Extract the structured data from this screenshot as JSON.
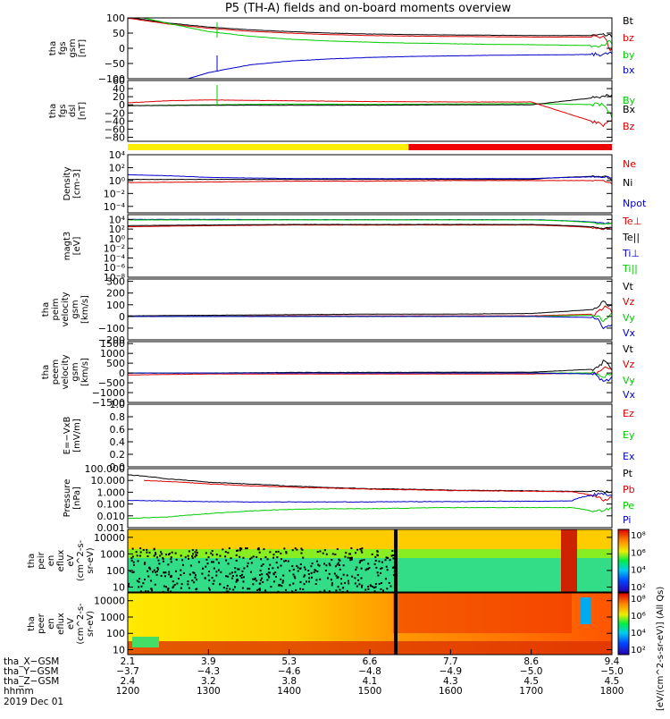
{
  "title": "P5 (TH-A) fields and on-board moments overview",
  "chart_data": [
    {
      "type": "line",
      "panel": "fgs-gsm",
      "ylabel": [
        "tha",
        "fgs",
        "gsm",
        "[nT]"
      ],
      "ylim": [
        -100,
        100
      ],
      "yticks": [
        "100",
        "50",
        "0",
        "−50",
        "−100"
      ],
      "legend": [
        "Bt",
        "bz",
        "by",
        "bx"
      ],
      "series": [
        {
          "name": "Bt",
          "color": "#000000",
          "x": [
            12.05,
            12.5,
            13.0,
            13.5,
            14.0,
            14.5,
            15.0,
            15.5,
            16.0,
            16.5,
            17.0,
            17.5,
            17.92,
            17.97,
            18.0
          ],
          "values": [
            100,
            83,
            70,
            61,
            55,
            50,
            47,
            45,
            44,
            43,
            42,
            42,
            42,
            40,
            38
          ]
        },
        {
          "name": "bz",
          "color": "#dd0000",
          "x": [
            12.0,
            12.5,
            13.0,
            13.5,
            14.0,
            14.5,
            15.0,
            15.5,
            16.0,
            16.5,
            17.0,
            17.5,
            17.92,
            17.97,
            18.0
          ],
          "values": [
            99,
            80,
            66,
            56,
            50,
            45,
            42,
            40,
            39,
            38,
            37,
            37,
            37,
            -10,
            -5
          ]
        },
        {
          "name": "by",
          "color": "#00cc00",
          "x": [
            12.2,
            12.5,
            13.0,
            13.5,
            14.0,
            14.5,
            15.0,
            15.5,
            16.0,
            16.5,
            17.0,
            17.5,
            17.92,
            17.97,
            18.0
          ],
          "values": [
            100,
            82,
            55,
            40,
            30,
            24,
            20,
            17,
            15,
            13,
            12,
            10,
            8,
            25,
            20
          ]
        },
        {
          "name": "bx",
          "color": "#0000cc",
          "x": [
            12.75,
            13.0,
            13.5,
            14.0,
            14.5,
            15.0,
            15.5,
            16.0,
            16.5,
            17.0,
            17.5,
            17.92,
            17.97,
            18.0
          ],
          "values": [
            -100,
            -80,
            -55,
            -42,
            -35,
            -30,
            -27,
            -25,
            -23,
            -22,
            -21,
            -20,
            -15,
            -18
          ]
        }
      ]
    },
    {
      "type": "line",
      "panel": "fgs-dsl",
      "ylabel": [
        "tha",
        "fgs",
        "dsl",
        "[nT]"
      ],
      "ylim": [
        -90,
        60
      ],
      "yticks": [
        "60",
        "40",
        "20",
        "0",
        "−20",
        "−40",
        "−60",
        "−80"
      ],
      "legend": [
        "By",
        "Bx",
        "Bz"
      ],
      "series": [
        {
          "name": "By",
          "color": "#00cc00",
          "x": [
            12.0,
            13.0,
            14.0,
            15.0,
            16.0,
            17.0,
            17.9,
            18.0
          ],
          "values": [
            -2,
            0,
            2,
            1,
            2,
            3,
            0,
            -30
          ]
        },
        {
          "name": "Bx",
          "color": "#000000",
          "x": [
            12.0,
            13.0,
            14.0,
            15.0,
            16.0,
            17.0,
            17.9,
            18.0
          ],
          "values": [
            -2,
            -1,
            -1,
            -1,
            0,
            0,
            20,
            25
          ]
        },
        {
          "name": "Bz",
          "color": "#dd0000",
          "x": [
            12.0,
            12.5,
            13.0,
            14.0,
            15.0,
            16.0,
            17.0,
            17.9,
            18.0
          ],
          "values": [
            5,
            10,
            12,
            10,
            8,
            7,
            7,
            -50,
            -40
          ]
        }
      ]
    },
    {
      "type": "line",
      "panel": "density",
      "ylabel": [
        "Density",
        "[cm-3]"
      ],
      "scale": "log",
      "ylim": [
        1e-05,
        10000
      ],
      "yticks": [
        "10⁴",
        "10²",
        "10⁰",
        "10⁻²",
        "10⁻⁴"
      ],
      "legend": [
        "Ne",
        "Ni",
        "Npot"
      ],
      "series": [
        {
          "name": "Ne",
          "color": "#dd0000",
          "x": [
            12.0,
            13.0,
            14.0,
            15.0,
            16.0,
            17.0,
            17.9,
            18.0
          ],
          "values": [
            0.5,
            0.6,
            0.8,
            0.8,
            1,
            1,
            1,
            0.3
          ]
        },
        {
          "name": "Ni",
          "color": "#000000",
          "x": [
            12.0,
            13.0,
            14.0,
            15.0,
            16.0,
            17.0,
            17.9,
            18.0
          ],
          "values": [
            1.5,
            1.5,
            1.5,
            1.5,
            1.5,
            1.5,
            5,
            1
          ]
        },
        {
          "name": "Npot",
          "color": "#0000cc",
          "x": [
            12.0,
            13.0,
            14.0,
            15.0,
            16.0,
            17.0,
            17.9,
            18.0
          ],
          "values": [
            8,
            3,
            2,
            2,
            2,
            2,
            4,
            3
          ]
        }
      ]
    },
    {
      "type": "line",
      "panel": "temperature",
      "ylabel": [
        "magt3",
        "[eV]"
      ],
      "scale": "log",
      "ylim": [
        1e-08,
        100000
      ],
      "yticks": [
        "10⁴",
        "10²",
        "10⁰",
        "10⁻²",
        "10⁻⁴",
        "10⁻⁶",
        "10⁻⁸"
      ],
      "legend": [
        "Te⊥",
        "Te||",
        "Ti⊥",
        "Ti||"
      ],
      "series": [
        {
          "name": "Te⊥",
          "color": "#dd0000",
          "x": [
            12.0,
            13.0,
            14.0,
            15.0,
            16.0,
            17.0,
            17.9,
            18.0
          ],
          "values": [
            300,
            500,
            700,
            700,
            700,
            700,
            100,
            150
          ]
        },
        {
          "name": "Te||",
          "color": "#000000",
          "x": [
            12.0,
            13.0,
            14.0,
            15.0,
            16.0,
            17.0,
            17.9,
            18.0
          ],
          "values": [
            500,
            700,
            900,
            900,
            900,
            900,
            150,
            200
          ]
        },
        {
          "name": "Ti⊥",
          "color": "#0000cc",
          "x": [
            12.0,
            13.0,
            14.0,
            15.0,
            16.0,
            17.0,
            17.9,
            18.0
          ],
          "values": [
            10000,
            10000,
            9000,
            9000,
            9000,
            9000,
            1500,
            2000
          ]
        },
        {
          "name": "Ti||",
          "color": "#00cc00",
          "x": [
            12.0,
            13.0,
            14.0,
            15.0,
            16.0,
            17.0,
            17.9,
            18.0
          ],
          "values": [
            8000,
            8000,
            8000,
            8000,
            8000,
            8000,
            1000,
            1500
          ]
        }
      ]
    },
    {
      "type": "line",
      "panel": "peim-velocity",
      "ylabel": [
        "tha",
        "peim",
        "velocity",
        "gsm",
        "[km/s]"
      ],
      "ylim": [
        -200,
        320
      ],
      "yticks": [
        "300",
        "200",
        "100",
        "0",
        "−100",
        "−200"
      ],
      "legend": [
        "Vt",
        "Vz",
        "Vy",
        "Vx"
      ],
      "series": [
        {
          "name": "Vt",
          "color": "#000000",
          "x": [
            12.0,
            13.0,
            14.0,
            15.0,
            16.0,
            17.0,
            17.8,
            17.9,
            18.0
          ],
          "values": [
            5,
            10,
            15,
            20,
            20,
            25,
            60,
            130,
            80
          ]
        },
        {
          "name": "Vz",
          "color": "#dd0000",
          "x": [
            12.0,
            13.0,
            14.0,
            15.0,
            16.0,
            17.0,
            17.8,
            17.9,
            18.0
          ],
          "values": [
            0,
            0,
            5,
            5,
            5,
            5,
            20,
            80,
            40
          ]
        },
        {
          "name": "Vy",
          "color": "#00cc00",
          "x": [
            12.0,
            13.0,
            14.0,
            15.0,
            16.0,
            17.0,
            17.8,
            17.9,
            18.0
          ],
          "values": [
            0,
            0,
            0,
            0,
            0,
            0,
            10,
            -40,
            20
          ]
        },
        {
          "name": "Vx",
          "color": "#0000cc",
          "x": [
            12.0,
            13.0,
            14.0,
            15.0,
            16.0,
            17.0,
            17.8,
            17.9,
            18.0
          ],
          "values": [
            0,
            0,
            0,
            0,
            0,
            0,
            -10,
            -100,
            -60
          ]
        }
      ]
    },
    {
      "type": "line",
      "panel": "peem-velocity",
      "ylabel": [
        "tha",
        "peem",
        "velocity",
        "gsm",
        "[km/s]"
      ],
      "ylim": [
        -1500,
        1600
      ],
      "yticks": [
        "1500",
        "1000",
        "500",
        "0",
        "−500",
        "−1000",
        "−1500"
      ],
      "legend": [
        "Vt",
        "Vz",
        "Vy",
        "Vx"
      ],
      "series": [
        {
          "name": "Vt",
          "color": "#000000",
          "x": [
            12.0,
            13.0,
            14.0,
            15.0,
            16.0,
            17.0,
            17.8,
            17.9,
            18.0
          ],
          "values": [
            0,
            0,
            30,
            30,
            40,
            40,
            200,
            600,
            200
          ]
        },
        {
          "name": "Vz",
          "color": "#dd0000",
          "x": [
            12.0,
            13.0,
            14.0,
            15.0,
            16.0,
            17.0,
            17.8,
            17.9,
            18.0
          ],
          "values": [
            -100,
            -50,
            -50,
            -50,
            -50,
            -50,
            0,
            300,
            100
          ]
        },
        {
          "name": "Vy",
          "color": "#00cc00",
          "x": [
            12.0,
            13.0,
            14.0,
            15.0,
            16.0,
            17.0,
            17.8,
            17.9,
            18.0
          ],
          "values": [
            0,
            0,
            0,
            0,
            0,
            0,
            0,
            -200,
            0
          ]
        },
        {
          "name": "Vx",
          "color": "#0000cc",
          "x": [
            12.0,
            13.0,
            14.0,
            15.0,
            16.0,
            17.0,
            17.8,
            17.9,
            18.0
          ],
          "values": [
            0,
            0,
            0,
            0,
            0,
            0,
            -50,
            -500,
            -200
          ]
        }
      ]
    },
    {
      "type": "line",
      "panel": "e-field",
      "ylabel": [
        "E=−VxB",
        "[mV/m]"
      ],
      "ylim": [
        0,
        1
      ],
      "yticks": [
        "1.0",
        "0.8",
        "0.6",
        "0.4",
        "0.2",
        "0.0"
      ],
      "legend": [
        "Ez",
        "Ey",
        "Ex"
      ],
      "series": []
    },
    {
      "type": "line",
      "panel": "pressure",
      "ylabel": [
        "Pressure",
        "[nPa]"
      ],
      "scale": "log",
      "ylim": [
        0.001,
        100
      ],
      "yticks": [
        "100.000",
        "10.000",
        "1.000",
        "0.100",
        "0.010",
        "0.001"
      ],
      "legend": [
        "Pt",
        "Pb",
        "Pe",
        "Pi"
      ],
      "series": [
        {
          "name": "Pt",
          "color": "#000000",
          "x": [
            12.0,
            12.5,
            13.0,
            13.5,
            14.0,
            14.5,
            15.0,
            15.5,
            16.0,
            16.5,
            17.0,
            17.5,
            17.9,
            18.0
          ],
          "values": [
            30,
            13,
            7,
            5,
            3.3,
            2.5,
            2,
            1.8,
            1.5,
            1.4,
            1.3,
            1.2,
            1.1,
            0.9
          ]
        },
        {
          "name": "Pb",
          "color": "#dd0000",
          "x": [
            12.2,
            12.5,
            13.0,
            13.5,
            14.0,
            14.5,
            15.0,
            15.5,
            16.0,
            16.5,
            17.0,
            17.5,
            17.9,
            18.0
          ],
          "values": [
            10,
            8,
            5,
            3.5,
            2.7,
            2.2,
            1.8,
            1.6,
            1.4,
            1.3,
            1.2,
            1.1,
            0.2,
            0.4
          ]
        },
        {
          "name": "Pe",
          "color": "#00cc00",
          "x": [
            12.0,
            12.5,
            13.0,
            13.5,
            14.0,
            14.5,
            15.0,
            15.5,
            16.0,
            16.5,
            17.0,
            17.5,
            17.8,
            18.0
          ],
          "values": [
            0.006,
            0.008,
            0.015,
            0.025,
            0.035,
            0.04,
            0.04,
            0.045,
            0.05,
            0.05,
            0.05,
            0.05,
            0.02,
            0.05
          ]
        },
        {
          "name": "Pi",
          "color": "#0000cc",
          "x": [
            12.0,
            12.5,
            13.0,
            13.5,
            14.0,
            14.5,
            15.0,
            15.5,
            16.0,
            16.5,
            17.0,
            17.5,
            17.9,
            18.0
          ],
          "values": [
            0.2,
            0.18,
            0.16,
            0.15,
            0.15,
            0.15,
            0.15,
            0.16,
            0.16,
            0.17,
            0.17,
            0.18,
            0.8,
            0.6
          ]
        }
      ]
    },
    {
      "type": "heatmap",
      "panel": "peir-en-eflux",
      "ylabel": [
        "tha",
        "peir",
        "en",
        "eflux",
        "eV",
        "(cm^2-s-",
        "sr-eV)"
      ],
      "scale": "log",
      "ylim": [
        5,
        30000
      ],
      "yticks": [
        "10000",
        "1000",
        "100",
        "10"
      ],
      "colorbar_ticks": [
        "10⁸",
        "10⁶",
        "10⁴",
        "10²"
      ],
      "colorbar_label": "[eV/(cm^2-s-sr-eV)] (All Qs)"
    },
    {
      "type": "heatmap",
      "panel": "peer-en-eflux",
      "ylabel": [
        "tha",
        "peer",
        "en",
        "eflux",
        "eV",
        "(cm^2-s-",
        "sr-eV)"
      ],
      "scale": "log",
      "ylim": [
        5,
        30000
      ],
      "yticks": [
        "10000",
        "1000",
        "100",
        "10"
      ],
      "colorbar_ticks": [
        "10⁸",
        "10⁶",
        "10⁴",
        "10²"
      ]
    }
  ],
  "x_axis": {
    "row_labels": [
      "tha_X−GSM",
      "tha_Y−GSM",
      "tha_Z−GSM",
      "hhmm",
      "2019 Dec 01"
    ],
    "ticks": [
      {
        "hhmm": "1200",
        "x": "2.1",
        "y": "−3.7",
        "z": "2.4"
      },
      {
        "hhmm": "1300",
        "x": "3.9",
        "y": "−4.3",
        "z": "3.2"
      },
      {
        "hhmm": "1400",
        "x": "5.3",
        "y": "−4.6",
        "z": "3.8"
      },
      {
        "hhmm": "1500",
        "x": "6.6",
        "y": "−4.8",
        "z": "4.1"
      },
      {
        "hhmm": "1600",
        "x": "7.7",
        "y": "−4.9",
        "z": "4.3"
      },
      {
        "hhmm": "1700",
        "x": "8.6",
        "y": "−5.0",
        "z": "4.5"
      },
      {
        "hhmm": "1800",
        "x": "9.4",
        "y": "−5.0",
        "z": "4.5"
      }
    ]
  },
  "mode_bar": {
    "yellow_until": 15.48,
    "colors": [
      "#ffee00",
      "#ee0000"
    ]
  }
}
